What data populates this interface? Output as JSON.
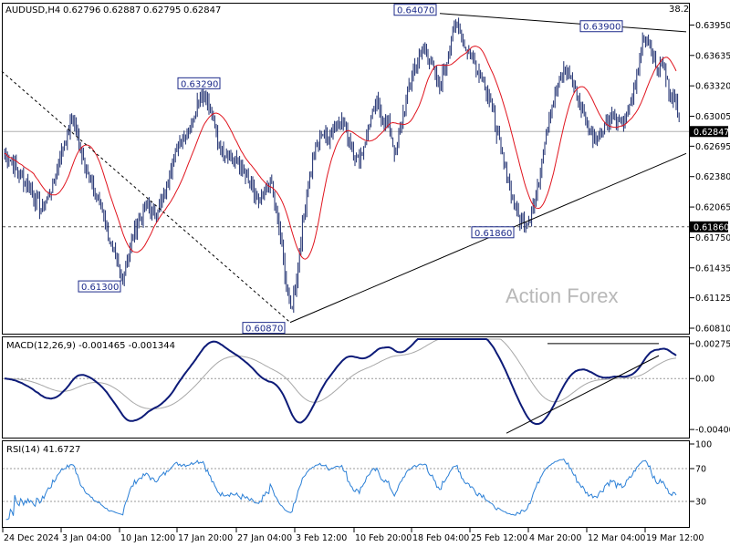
{
  "header": {
    "symbol": "AUDUSD,H4",
    "open": "0.62796",
    "high": "0.62887",
    "low": "0.62795",
    "close": "0.62847",
    "corner_value": "38.2"
  },
  "watermark": "Action Forex",
  "colors": {
    "bars": "#1a2a6c",
    "ma": "#e0141e",
    "macd": "#0d1b78",
    "signal": "#a8a8a8",
    "rsi": "#2a7fd6",
    "box_border": "#1c2a8a",
    "trendline": "#000000"
  },
  "chart_data": [
    {
      "type": "candlestick",
      "title": "AUDUSD,H4",
      "y_ticks": [
        "0.63950",
        "0.63635",
        "0.63320",
        "0.63005",
        "0.62695",
        "0.62380",
        "0.62065",
        "0.61750",
        "0.61435",
        "0.61125",
        "0.60810"
      ],
      "ylim": [
        0.6081,
        0.6404
      ],
      "current_price": "0.62847",
      "support_level": "0.61860",
      "annotations": [
        {
          "text": "0.64070",
          "date": "17 Feb",
          "price": 0.6407
        },
        {
          "text": "0.63900",
          "date": "14 Mar",
          "price": 0.639
        },
        {
          "text": "0.63290",
          "date": "14 Jan",
          "price": 0.6329
        },
        {
          "text": "0.61300",
          "date": "10 Jan",
          "price": 0.613
        },
        {
          "text": "0.61860",
          "date": "28 Feb",
          "price": 0.6186
        },
        {
          "text": "0.60870",
          "date": "3 Feb",
          "price": 0.6087
        }
      ],
      "moving_average": "red line",
      "trendlines": [
        {
          "from": [
            "17 Feb",
            0.6407
          ],
          "to": [
            "21 Mar",
            0.6388
          ]
        },
        {
          "from": [
            "3 Feb",
            0.6087
          ],
          "to": [
            "21 Mar",
            0.6262
          ]
        },
        {
          "from": [
            "24 Dec",
            0.6347
          ],
          "to": [
            "3 Feb",
            0.6087
          ],
          "style": "dashed"
        }
      ],
      "series_closes": [
        0.6262,
        0.6256,
        0.6244,
        0.6236,
        0.6228,
        0.6214,
        0.6204,
        0.6218,
        0.6232,
        0.6262,
        0.6278,
        0.63,
        0.6272,
        0.6252,
        0.6228,
        0.6216,
        0.6198,
        0.617,
        0.6148,
        0.6134,
        0.6158,
        0.6182,
        0.6196,
        0.621,
        0.62,
        0.6208,
        0.6224,
        0.6254,
        0.6272,
        0.6282,
        0.629,
        0.6314,
        0.6326,
        0.631,
        0.6284,
        0.6264,
        0.6262,
        0.6256,
        0.6248,
        0.6236,
        0.6222,
        0.621,
        0.622,
        0.6232,
        0.6194,
        0.615,
        0.6096,
        0.613,
        0.6186,
        0.6236,
        0.6262,
        0.6284,
        0.6278,
        0.6288,
        0.63,
        0.6288,
        0.6268,
        0.6254,
        0.6272,
        0.6298,
        0.6312,
        0.63,
        0.629,
        0.626,
        0.6296,
        0.6326,
        0.6352,
        0.6364,
        0.637,
        0.635,
        0.633,
        0.635,
        0.638,
        0.6398,
        0.6374,
        0.6366,
        0.6352,
        0.6342,
        0.6322,
        0.6296,
        0.6264,
        0.624,
        0.6212,
        0.6194,
        0.6188,
        0.6204,
        0.623,
        0.6276,
        0.6306,
        0.633,
        0.6346,
        0.6344,
        0.6326,
        0.631,
        0.629,
        0.628,
        0.6282,
        0.6296,
        0.6302,
        0.6292,
        0.6296,
        0.6314,
        0.6344,
        0.6386,
        0.6378,
        0.635,
        0.6356,
        0.633,
        0.6318,
        0.6298,
        0.6284,
        0.6282,
        0.6285
      ],
      "x_ticks": [
        "24 Dec 2024",
        "3 Jan 04:00",
        "10 Jan 12:00",
        "17 Jan 20:00",
        "27 Jan 04:00",
        "3 Feb 12:00",
        "10 Feb 20:00",
        "18 Feb 04:00",
        "25 Feb 12:00",
        "4 Mar 20:00",
        "12 Mar 04:00",
        "19 Mar 12:00"
      ]
    },
    {
      "type": "line",
      "title": "MACD(12,26,9) -0.001465 -0.001344",
      "ylim": [
        -0.0045,
        0.0031
      ],
      "y_ticks": [
        "0.00275",
        "0.00",
        "-0.004006"
      ],
      "annotations": [
        "horizontal line at 0.00275 from 4 Mar to 19 Mar",
        "rising line from 25 Feb to 20 Mar"
      ]
    },
    {
      "type": "line",
      "title": "RSI(14) 41.6727",
      "ylim": [
        0,
        100
      ],
      "y_ticks": [
        "100",
        "70",
        "30",
        "0"
      ],
      "levels": [
        70,
        30
      ]
    }
  ]
}
